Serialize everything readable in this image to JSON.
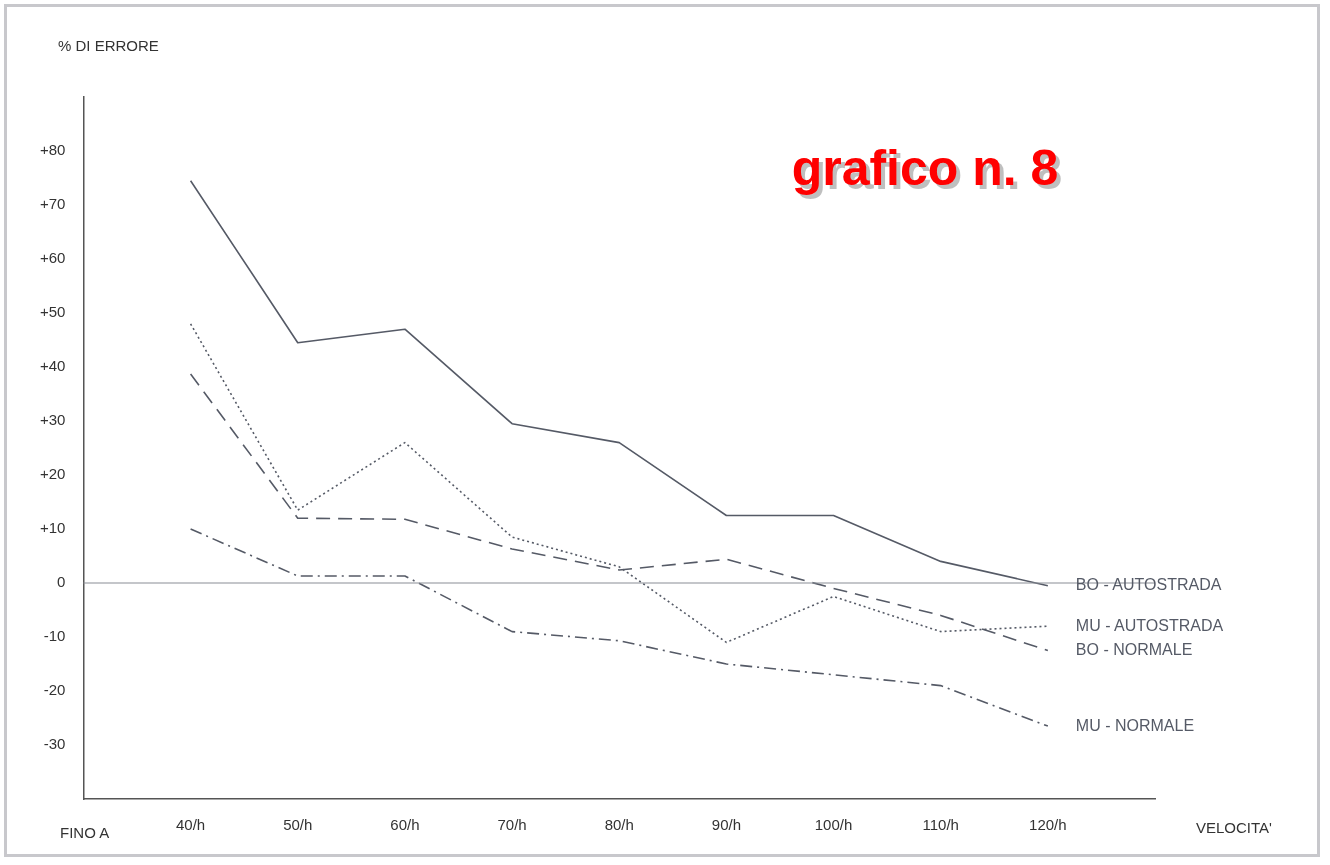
{
  "chart_data": {
    "type": "line",
    "title": "grafico n. 8",
    "ylabel": "% DI ERRORE",
    "xlabel": "VELOCITA'",
    "annotations": [
      "FINO A"
    ],
    "categories": [
      "40/h",
      "50/h",
      "60/h",
      "70/h",
      "80/h",
      "90/h",
      "100/h",
      "110/h",
      "120/h"
    ],
    "ylim": [
      -40,
      90
    ],
    "yticks": [
      {
        "value": -30,
        "label": "-30"
      },
      {
        "value": -20,
        "label": "-20"
      },
      {
        "value": -10,
        "label": "-10"
      },
      0,
      {
        "value": 10,
        "label": "+10"
      },
      {
        "value": 20,
        "label": "+20"
      },
      {
        "value": 30,
        "label": "+30"
      },
      {
        "value": 40,
        "label": "+40"
      },
      {
        "value": 50,
        "label": "+50"
      },
      {
        "value": 60,
        "label": "+60"
      },
      {
        "value": 70,
        "label": "+70"
      },
      {
        "value": 80,
        "label": "+80"
      }
    ],
    "ref_lines": [
      {
        "axis": "y",
        "value": 0,
        "color": "#8a8d96"
      }
    ],
    "grid": false,
    "legend": false,
    "marker": "none",
    "series": [
      {
        "name": "BO - AUTOSTRADA",
        "color": "#555a66",
        "line_style": "solid",
        "values": [
          74.5,
          44.5,
          47,
          29.5,
          26,
          12.5,
          12.5,
          4,
          -0.5
        ]
      },
      {
        "name": "MU - AUTOSTRADA",
        "color": "#555a66",
        "line_style": "dotted",
        "values": [
          48,
          13.5,
          26,
          8.5,
          3,
          -11,
          -2.5,
          -9,
          -8
        ]
      },
      {
        "name": "BO - NORMALE",
        "color": "#555a66",
        "line_style": "dashed",
        "values": [
          38.7,
          12,
          11.8,
          6.3,
          2.4,
          4.4,
          -1,
          -6,
          -12.5
        ]
      },
      {
        "name": "MU - NORMALE",
        "color": "#555a66",
        "line_style": "dashdot",
        "values": [
          10,
          1.3,
          1.3,
          -9,
          -10.7,
          -15,
          -17,
          -19,
          -26.5
        ]
      }
    ]
  }
}
